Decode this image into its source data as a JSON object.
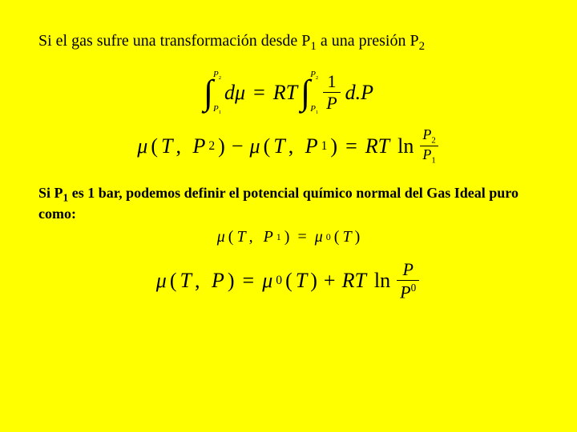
{
  "background_color": "#ffff00",
  "text_color": "#000000",
  "font_family": "Times New Roman",
  "intro": {
    "pre": "Si el gas sufre una transformación desde P",
    "sub1": "1",
    "mid": " a una presión P",
    "sub2": "2"
  },
  "eq1": {
    "int_lower": "P",
    "int_lower_sub": "1",
    "int_upper": "P",
    "int_upper_sub": "2",
    "lhs_d": "d",
    "lhs_mu": "μ",
    "equals": "=",
    "R": "R",
    "T": "T",
    "frac_num": "1",
    "frac_den": "P",
    "d2": "d.",
    "P2": "P"
  },
  "eq2": {
    "mu1": "μ",
    "lp1": "(",
    "T1": "T",
    "comma1": ",",
    "Pa": "P",
    "Pa_sub": "2",
    "rp1": ")",
    "minus": "−",
    "mu2": "μ",
    "lp2": "(",
    "T2": "T",
    "comma2": ",",
    "Pb": "P",
    "Pb_sub": "1",
    "rp2": ")",
    "equals": "=",
    "R": "R",
    "Tr": "T",
    "ln": "ln",
    "frac_num_P": "P",
    "frac_num_sub": "2",
    "frac_den_P": "P",
    "frac_den_sub": "1"
  },
  "bold": {
    "pre": "Si P",
    "sub": "1",
    "rest": " es 1 bar, podemos definir el potencial químico normal del Gas Ideal puro como:"
  },
  "eq3": {
    "mu": "μ",
    "lp": "(",
    "T": "T",
    "comma": ",",
    "P": "P",
    "P_sub": "1",
    "rp": ")",
    "equals": "=",
    "mu2": "μ",
    "mu2_sup": "0",
    "lp2": "(",
    "T2": "T",
    "rp2": ")"
  },
  "eq4": {
    "mu": "μ",
    "lp": "(",
    "T": "T",
    "comma": ",",
    "P": "P",
    "rp": ")",
    "equals": "=",
    "mu2": "μ",
    "mu2_sup": "0",
    "lp2": "(",
    "T2": "T",
    "rp2": ")",
    "plus": "+",
    "R": "R",
    "Tr": "T",
    "ln": "ln",
    "frac_num": "P",
    "frac_den_P": "P",
    "frac_den_sup": "0"
  }
}
